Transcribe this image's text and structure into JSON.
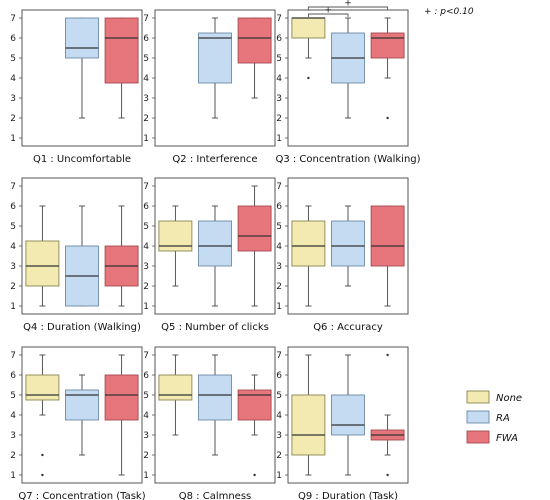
{
  "chart_data": {
    "type": "box",
    "ylim": [
      0.6,
      7.4
    ],
    "yticks": [
      1,
      2,
      3,
      4,
      5,
      6,
      7
    ],
    "groups": [
      {
        "name": "None",
        "color": "#f2eab1",
        "stroke": "#8c8450"
      },
      {
        "name": "RA",
        "color": "#c4dbf2",
        "stroke": "#6d8aa8"
      },
      {
        "name": "FWA",
        "color": "#e7767c",
        "stroke": "#a44a50"
      }
    ],
    "significance_note": "+ : p<0.10",
    "panels": [
      {
        "title": "Q1 : Uncomfortable",
        "boxes": [
          {
            "group": "RA",
            "min": 2,
            "q1": 5,
            "median": 5.5,
            "q3": 7,
            "max": 7,
            "outliers": []
          },
          {
            "group": "FWA",
            "min": 2,
            "q1": 3.75,
            "median": 6,
            "q3": 7,
            "max": 7,
            "outliers": []
          }
        ],
        "significance": []
      },
      {
        "title": "Q2 : Interference",
        "boxes": [
          {
            "group": "RA",
            "min": 2,
            "q1": 3.75,
            "median": 6,
            "q3": 6.25,
            "max": 7,
            "outliers": []
          },
          {
            "group": "FWA",
            "min": 3,
            "q1": 4.75,
            "median": 6,
            "q3": 7,
            "max": 7,
            "outliers": []
          }
        ],
        "significance": []
      },
      {
        "title": "Q3 : Concentration (Walking)",
        "boxes": [
          {
            "group": "None",
            "min": 5,
            "q1": 6,
            "median": 7,
            "q3": 7,
            "max": 7,
            "outliers": [
              4
            ]
          },
          {
            "group": "RA",
            "min": 2,
            "q1": 3.75,
            "median": 5,
            "q3": 6.25,
            "max": 7,
            "outliers": []
          },
          {
            "group": "FWA",
            "min": 4,
            "q1": 5,
            "median": 6,
            "q3": 6.25,
            "max": 7,
            "outliers": [
              2
            ]
          }
        ],
        "significance": [
          {
            "from": "None",
            "to": "RA",
            "label": "+"
          },
          {
            "from": "None",
            "to": "FWA",
            "label": "+"
          }
        ]
      },
      {
        "title": "Q4 : Duration (Walking)",
        "boxes": [
          {
            "group": "None",
            "min": 1,
            "q1": 2,
            "median": 3,
            "q3": 4.25,
            "max": 6,
            "outliers": []
          },
          {
            "group": "RA",
            "min": 1,
            "q1": 1,
            "median": 2.5,
            "q3": 4,
            "max": 6,
            "outliers": []
          },
          {
            "group": "FWA",
            "min": 1,
            "q1": 2,
            "median": 3,
            "q3": 4,
            "max": 6,
            "outliers": []
          }
        ],
        "significance": []
      },
      {
        "title": "Q5 : Number of clicks",
        "boxes": [
          {
            "group": "None",
            "min": 2,
            "q1": 3.75,
            "median": 4,
            "q3": 5.25,
            "max": 6,
            "outliers": []
          },
          {
            "group": "RA",
            "min": 1,
            "q1": 3,
            "median": 4,
            "q3": 5.25,
            "max": 6,
            "outliers": []
          },
          {
            "group": "FWA",
            "min": 1,
            "q1": 3.75,
            "median": 4.5,
            "q3": 6,
            "max": 7,
            "outliers": []
          }
        ],
        "significance": []
      },
      {
        "title": "Q6 : Accuracy",
        "boxes": [
          {
            "group": "None",
            "min": 1,
            "q1": 3,
            "median": 4,
            "q3": 5.25,
            "max": 6,
            "outliers": []
          },
          {
            "group": "RA",
            "min": 2,
            "q1": 3,
            "median": 4,
            "q3": 5.25,
            "max": 6,
            "outliers": []
          },
          {
            "group": "FWA",
            "min": 1,
            "q1": 3,
            "median": 4,
            "q3": 6,
            "max": 6,
            "outliers": []
          }
        ],
        "significance": []
      },
      {
        "title": "Q7 : Concentration (Task)",
        "boxes": [
          {
            "group": "None",
            "min": 4,
            "q1": 4.75,
            "median": 5,
            "q3": 6,
            "max": 7,
            "outliers": [
              2,
              1
            ]
          },
          {
            "group": "RA",
            "min": 2,
            "q1": 3.75,
            "median": 5,
            "q3": 5.25,
            "max": 6,
            "outliers": []
          },
          {
            "group": "FWA",
            "min": 1,
            "q1": 3.75,
            "median": 5,
            "q3": 6,
            "max": 7,
            "outliers": []
          }
        ],
        "significance": []
      },
      {
        "title": "Q8 : Calmness",
        "boxes": [
          {
            "group": "None",
            "min": 3,
            "q1": 4.75,
            "median": 5,
            "q3": 6,
            "max": 7,
            "outliers": []
          },
          {
            "group": "RA",
            "min": 2,
            "q1": 3.75,
            "median": 5,
            "q3": 6,
            "max": 7,
            "outliers": []
          },
          {
            "group": "FWA",
            "min": 3,
            "q1": 3.75,
            "median": 5,
            "q3": 5.25,
            "max": 6,
            "outliers": [
              1
            ]
          }
        ],
        "significance": []
      },
      {
        "title": "Q9 : Duration (Task)",
        "boxes": [
          {
            "group": "None",
            "min": 1,
            "q1": 2,
            "median": 3,
            "q3": 5,
            "max": 7,
            "outliers": []
          },
          {
            "group": "RA",
            "min": 1,
            "q1": 3,
            "median": 3.5,
            "q3": 5,
            "max": 7,
            "outliers": []
          },
          {
            "group": "FWA",
            "min": 2,
            "q1": 2.75,
            "median": 3,
            "q3": 3.25,
            "max": 4,
            "outliers": [
              7,
              1
            ]
          }
        ],
        "significance": []
      }
    ]
  }
}
